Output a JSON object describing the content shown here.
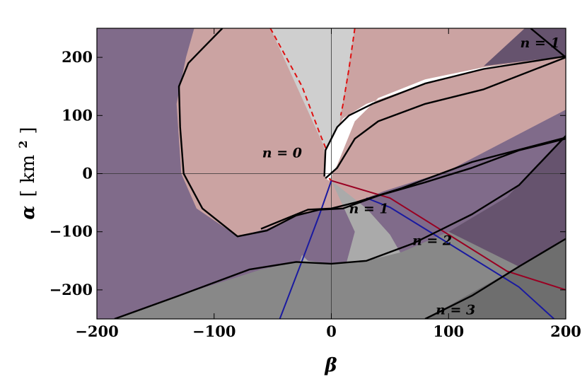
{
  "chart_data": {
    "type": "area",
    "title": "",
    "xlabel": "β",
    "ylabel": "α [km²]",
    "ylabel_parts": {
      "symbol": "α",
      "open": "[",
      "unit": "km",
      "exponent": "2",
      "close": "]"
    },
    "xlim": [
      -200,
      200
    ],
    "ylim": [
      -250,
      250
    ],
    "x_ticks": [
      -200,
      -100,
      0,
      100,
      200
    ],
    "x_tick_labels": [
      "−200",
      "−100",
      "0",
      "100",
      "200"
    ],
    "y_ticks": [
      -200,
      -100,
      0,
      100,
      200
    ],
    "y_tick_labels": [
      "−200",
      "−100",
      "0",
      "100",
      "200"
    ],
    "grid": false,
    "legend": "none",
    "colors": {
      "background_region": "#806b8a",
      "pink_region": "#cba3a2",
      "light_gray_region": "#cfcfcf",
      "mid_gray_region": "#aaaaaa",
      "dark_gray_region": "#888888",
      "darkest_gray_region": "#6e6e6e",
      "dark_purple_region": "#66536e",
      "white_region": "#ffffff",
      "boundary": "#000000",
      "red_line": "#e01010",
      "dark_red_line": "#990022",
      "blue_line": "#1a1aa0"
    },
    "regions": [
      {
        "id": "pink-region",
        "color": "pink_region",
        "points": [
          [
            -117,
            250
          ],
          [
            -124,
            200
          ],
          [
            -132,
            120
          ],
          [
            -128,
            0
          ],
          [
            -115,
            -60
          ],
          [
            -80,
            -108
          ],
          [
            -55,
            -95
          ],
          [
            -25,
            -68
          ],
          [
            -10,
            -62
          ],
          [
            10,
            -58
          ],
          [
            45,
            -30
          ],
          [
            100,
            5
          ],
          [
            200,
            110
          ],
          [
            200,
            200
          ],
          [
            180,
            250
          ]
        ]
      },
      {
        "id": "light-gray-wedge",
        "color": "light_gray_region",
        "points": [
          [
            -52,
            250
          ],
          [
            -7,
            50
          ],
          [
            0,
            -12
          ],
          [
            8,
            100
          ],
          [
            20,
            250
          ]
        ]
      },
      {
        "id": "white-region",
        "color": "white_region",
        "points": [
          [
            -5,
            -8
          ],
          [
            -6,
            40
          ],
          [
            10,
            95
          ],
          [
            30,
            120
          ],
          [
            80,
            155
          ],
          [
            130,
            180
          ],
          [
            200,
            201
          ],
          [
            130,
            183
          ],
          [
            80,
            162
          ],
          [
            40,
            130
          ],
          [
            20,
            90
          ],
          [
            5,
            15
          ],
          [
            -2,
            -12
          ]
        ]
      },
      {
        "id": "mid-gray-region",
        "color": "mid_gray_region",
        "points": [
          [
            0,
            -12
          ],
          [
            30,
            -60
          ],
          [
            50,
            -105
          ],
          [
            60,
            -140
          ],
          [
            30,
            -155
          ],
          [
            0,
            -155
          ],
          [
            -20,
            -150
          ],
          [
            -25,
            -140
          ],
          [
            -44,
            -250
          ],
          [
            0,
            -250
          ],
          [
            20,
            -100
          ]
        ]
      },
      {
        "id": "n2-region",
        "color": "dark_gray_region",
        "points": [
          [
            -185,
            -250
          ],
          [
            -130,
            -210
          ],
          [
            -60,
            -165
          ],
          [
            -30,
            -152
          ],
          [
            0,
            -155
          ],
          [
            30,
            -150
          ],
          [
            60,
            -135
          ],
          [
            100,
            -100
          ],
          [
            150,
            -40
          ],
          [
            200,
            65
          ],
          [
            200,
            -110
          ],
          [
            160,
            -160
          ],
          [
            80,
            -250
          ]
        ]
      },
      {
        "id": "n3-region",
        "color": "darkest_gray_region",
        "points": [
          [
            80,
            -250
          ],
          [
            160,
            -160
          ],
          [
            200,
            -110
          ],
          [
            200,
            -250
          ]
        ]
      },
      {
        "id": "dark-purple-upper-right",
        "color": "dark_purple_region",
        "points": [
          [
            200,
            250
          ],
          [
            165,
            250
          ],
          [
            130,
            185
          ],
          [
            200,
            202
          ]
        ]
      },
      {
        "id": "dark-purple-right",
        "color": "dark_purple_region",
        "points": [
          [
            200,
            65
          ],
          [
            150,
            -40
          ],
          [
            100,
            -100
          ],
          [
            160,
            -160
          ],
          [
            200,
            -110
          ]
        ]
      }
    ],
    "boundary_curves": [
      {
        "id": "outer-upper-left-loop",
        "color": "boundary",
        "points": [
          [
            -93,
            250
          ],
          [
            -110,
            215
          ],
          [
            -122,
            190
          ],
          [
            -130,
            150
          ],
          [
            -129,
            80
          ],
          [
            -126,
            0
          ],
          [
            -110,
            -60
          ],
          [
            -80,
            -108
          ],
          [
            -55,
            -98
          ],
          [
            -30,
            -72
          ],
          [
            -10,
            -62
          ],
          [
            10,
            -60
          ],
          [
            40,
            -38
          ],
          [
            80,
            -15
          ],
          [
            120,
            10
          ],
          [
            160,
            40
          ],
          [
            200,
            60
          ]
        ]
      },
      {
        "id": "n0-boundary",
        "color": "boundary",
        "points": [
          [
            -6,
            -5
          ],
          [
            -5,
            40
          ],
          [
            5,
            80
          ],
          [
            15,
            100
          ],
          [
            35,
            120
          ],
          [
            80,
            155
          ],
          [
            130,
            180
          ],
          [
            200,
            202
          ]
        ]
      },
      {
        "id": "n0-inner",
        "color": "boundary",
        "points": [
          [
            -5,
            -8
          ],
          [
            5,
            10
          ],
          [
            20,
            60
          ],
          [
            40,
            90
          ],
          [
            80,
            120
          ],
          [
            130,
            145
          ],
          [
            200,
            200
          ],
          [
            170,
            250
          ]
        ]
      },
      {
        "id": "n1-boundary",
        "color": "boundary",
        "points": [
          [
            -60,
            -95
          ],
          [
            -20,
            -62
          ],
          [
            0,
            -60
          ],
          [
            20,
            -50
          ],
          [
            60,
            -25
          ],
          [
            120,
            20
          ],
          [
            200,
            62
          ]
        ]
      },
      {
        "id": "n2-boundary",
        "color": "boundary",
        "points": [
          [
            -185,
            -250
          ],
          [
            -130,
            -210
          ],
          [
            -70,
            -165
          ],
          [
            -30,
            -152
          ],
          [
            0,
            -155
          ],
          [
            30,
            -150
          ],
          [
            70,
            -120
          ],
          [
            120,
            -70
          ],
          [
            160,
            -20
          ],
          [
            200,
            65
          ]
        ]
      },
      {
        "id": "n3-boundary",
        "color": "boundary",
        "points": [
          [
            80,
            -250
          ],
          [
            120,
            -210
          ],
          [
            160,
            -160
          ],
          [
            200,
            -112
          ]
        ]
      }
    ],
    "series": [
      {
        "id": "red-dashed-left",
        "color": "red_line",
        "dashed": true,
        "x": [
          -52,
          -25,
          -10,
          -4
        ],
        "y": [
          250,
          150,
          70,
          40
        ]
      },
      {
        "id": "red-dashed-right",
        "color": "red_line",
        "dashed": true,
        "x": [
          20,
          15,
          10,
          8
        ],
        "y": [
          250,
          180,
          120,
          100
        ]
      },
      {
        "id": "red-solid",
        "color": "red_line",
        "dashed": false,
        "x": [
          -2,
          0
        ],
        "y": [
          -8,
          -12
        ]
      },
      {
        "id": "red-descending",
        "color": "dark_red_line",
        "dashed": false,
        "x": [
          0,
          30,
          50,
          100,
          150,
          200
        ],
        "y": [
          -12,
          -30,
          -42,
          -105,
          -168,
          -200
        ]
      },
      {
        "id": "blue-left",
        "color": "blue_line",
        "dashed": false,
        "x": [
          -44,
          -25,
          -10,
          0
        ],
        "y": [
          -250,
          -150,
          -70,
          -12
        ]
      },
      {
        "id": "blue-right",
        "color": "blue_line",
        "dashed": false,
        "x": [
          30,
          50,
          100,
          160,
          190
        ],
        "y": [
          -42,
          -58,
          -120,
          -195,
          -250
        ]
      }
    ],
    "annotations": [
      {
        "id": "n-equals-0",
        "text": "n = 0",
        "x": -42,
        "y": 28
      },
      {
        "id": "n-equals-1-upper",
        "text": "n = 1",
        "x": 178,
        "y": 217
      },
      {
        "id": "n-equals-1-lower",
        "text": "n = 1",
        "x": 32,
        "y": -68
      },
      {
        "id": "n-equals-2",
        "text": "n = 2",
        "x": 86,
        "y": -123
      },
      {
        "id": "n-equals-3",
        "text": "n = 3",
        "x": 106,
        "y": -242
      }
    ]
  }
}
